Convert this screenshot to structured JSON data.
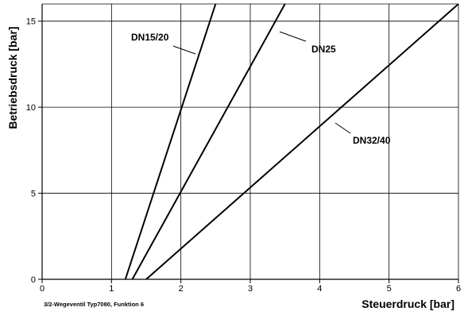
{
  "chart_data": {
    "type": "line",
    "xlabel": "Steuerdruck [bar]",
    "ylabel": "Betriebsdruck [bar]",
    "caption": "3/2-Wegeventil Typ7080,  Funktion 6",
    "xlim": [
      0,
      6
    ],
    "ylim": [
      0,
      16
    ],
    "xticks": [
      0,
      1,
      2,
      3,
      4,
      5,
      6
    ],
    "yticks": [
      0,
      5,
      10,
      15
    ],
    "grid": true,
    "series": [
      {
        "name": "DN15/20",
        "x": [
          1.2,
          2.5
        ],
        "y": [
          0,
          16
        ]
      },
      {
        "name": "DN25",
        "x": [
          1.3,
          3.5
        ],
        "y": [
          0,
          16
        ]
      },
      {
        "name": "DN32/40",
        "x": [
          1.5,
          6.0
        ],
        "y": [
          0,
          16
        ]
      }
    ]
  }
}
